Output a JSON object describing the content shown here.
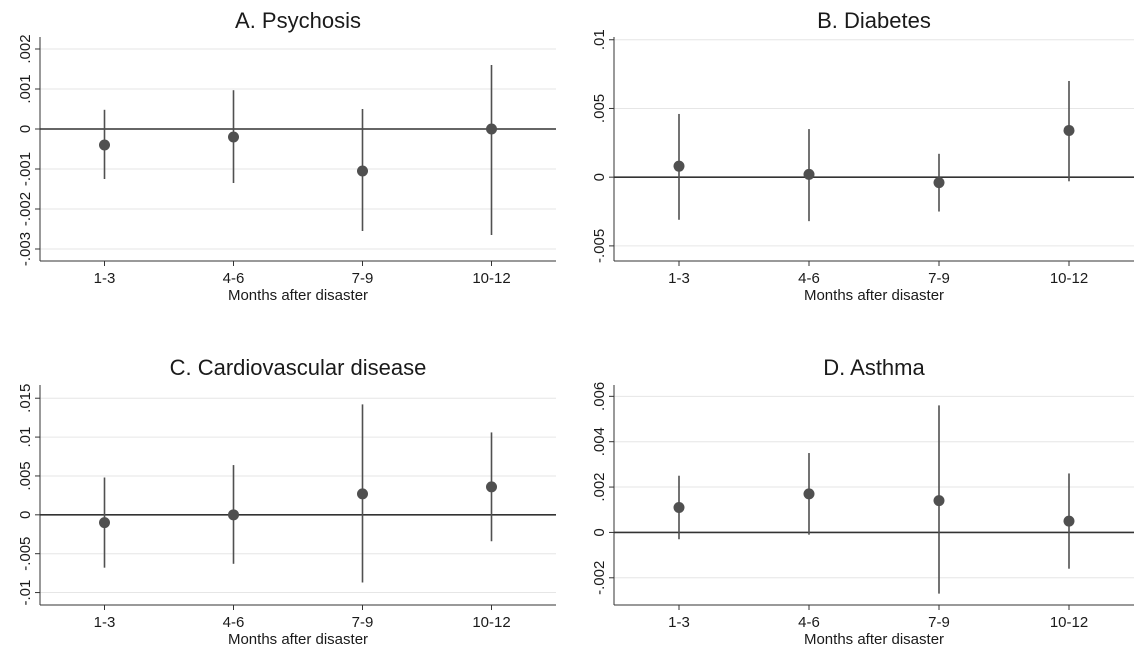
{
  "chart_data": [
    {
      "type": "scatter",
      "title": "A. Psychosis",
      "xlabel": "Months after disaster",
      "categories": [
        "1-3",
        "4-6",
        "7-9",
        "10-12"
      ],
      "ylim": [
        -0.0033,
        0.0023
      ],
      "yticks": [
        -0.003,
        -0.002,
        -0.001,
        0,
        0.001,
        0.002
      ],
      "ytick_labels": [
        "-.003",
        "-.002",
        "-.001",
        "0",
        ".001",
        ".002"
      ],
      "grid": true,
      "zero_line": true,
      "series": [
        {
          "estimate": [
            -0.0004,
            -0.0002,
            -0.00105,
            0.0
          ],
          "ci_low": [
            -0.00125,
            -0.00135,
            -0.00255,
            -0.00265
          ],
          "ci_high": [
            0.00048,
            0.00097,
            0.0005,
            0.0016
          ]
        }
      ],
      "colors": {
        "marker": "#505050",
        "zero_line": "#333333"
      }
    },
    {
      "type": "scatter",
      "title": "B. Diabetes",
      "xlabel": "Months after disaster",
      "categories": [
        "1-3",
        "4-6",
        "7-9",
        "10-12"
      ],
      "ylim": [
        -0.0061,
        0.0102
      ],
      "yticks": [
        -0.005,
        0,
        0.005,
        0.01
      ],
      "ytick_labels": [
        "-.005",
        "0",
        ".005",
        ".01"
      ],
      "grid": true,
      "zero_line": true,
      "series": [
        {
          "estimate": [
            0.0008,
            0.0002,
            -0.0004,
            0.0034
          ],
          "ci_low": [
            -0.0031,
            -0.0032,
            -0.0025,
            -0.0003
          ],
          "ci_high": [
            0.0046,
            0.0035,
            0.0017,
            0.007
          ]
        }
      ],
      "colors": {
        "marker": "#505050",
        "zero_line": "#333333"
      }
    },
    {
      "type": "scatter",
      "title": "C. Cardiovascular disease",
      "xlabel": "Months after disaster",
      "categories": [
        "1-3",
        "4-6",
        "7-9",
        "10-12"
      ],
      "ylim": [
        -0.0116,
        0.0167
      ],
      "yticks": [
        -0.01,
        -0.005,
        0,
        0.005,
        0.01,
        0.015
      ],
      "ytick_labels": [
        "-.01",
        "-.005",
        "0",
        ".005",
        ".01",
        ".015"
      ],
      "grid": true,
      "zero_line": true,
      "series": [
        {
          "estimate": [
            -0.001,
            0.0,
            0.0027,
            0.0036
          ],
          "ci_low": [
            -0.0068,
            -0.0063,
            -0.0087,
            -0.0034
          ],
          "ci_high": [
            0.0048,
            0.0064,
            0.0142,
            0.0106
          ]
        }
      ],
      "colors": {
        "marker": "#505050",
        "zero_line": "#333333"
      }
    },
    {
      "type": "scatter",
      "title": "D. Asthma",
      "xlabel": "Months after disaster",
      "categories": [
        "1-3",
        "4-6",
        "7-9",
        "10-12"
      ],
      "ylim": [
        -0.0032,
        0.0065
      ],
      "yticks": [
        -0.002,
        0,
        0.002,
        0.004,
        0.006
      ],
      "ytick_labels": [
        "-.002",
        "0",
        ".002",
        ".004",
        ".006"
      ],
      "grid": true,
      "zero_line": true,
      "series": [
        {
          "estimate": [
            0.0011,
            0.0017,
            0.0014,
            0.0005
          ],
          "ci_low": [
            -0.0003,
            -0.0001,
            -0.0027,
            -0.0016
          ],
          "ci_high": [
            0.0025,
            0.0035,
            0.0056,
            0.0026
          ]
        }
      ],
      "colors": {
        "marker": "#505050",
        "zero_line": "#333333"
      }
    }
  ]
}
